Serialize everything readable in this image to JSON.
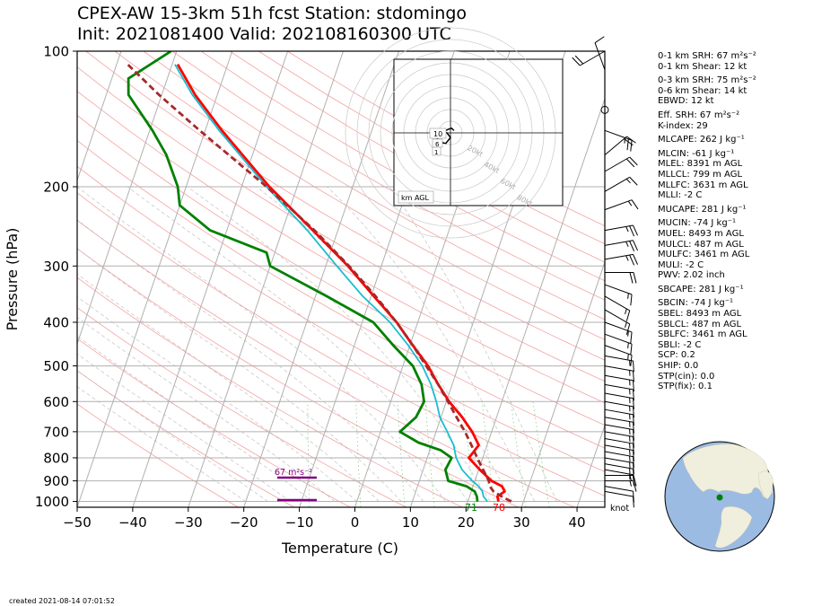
{
  "header": {
    "title_line1": "CPEX-AW 15-3km  51h fcst  Station: stdomingo",
    "title_line2": "Init: 2021081400  Valid: 202108160300 UTC"
  },
  "chart_data": {
    "type": "skew-t",
    "xlabel": "Temperature (C)",
    "ylabel": "Pressure (hPa)",
    "xlim": [
      -50,
      45
    ],
    "ylim": [
      1030,
      100
    ],
    "x_ticks": [
      -50,
      -40,
      -30,
      -20,
      -10,
      0,
      10,
      20,
      30,
      40
    ],
    "y_ticks": [
      100,
      200,
      300,
      400,
      500,
      600,
      700,
      800,
      900,
      1000
    ],
    "wind_units_label": "knot",
    "surface_dewpoint_label": "71",
    "surface_temperature_label": "78",
    "srh_bar_label": "67 m²s⁻²",
    "series": [
      {
        "role": "temperature",
        "color": "#ff0000",
        "points": [
          [
            1000,
            25.5
          ],
          [
            975,
            25.0
          ],
          [
            950,
            26.0
          ],
          [
            925,
            25.2
          ],
          [
            900,
            23.0
          ],
          [
            850,
            20.2
          ],
          [
            800,
            17.5
          ],
          [
            775,
            18.0
          ],
          [
            750,
            18.5
          ],
          [
            700,
            16.5
          ],
          [
            650,
            13.8
          ],
          [
            600,
            10.5
          ],
          [
            550,
            7.5
          ],
          [
            500,
            4.5
          ],
          [
            450,
            0.5
          ],
          [
            400,
            -3.8
          ],
          [
            350,
            -9.5
          ],
          [
            300,
            -16
          ],
          [
            250,
            -24.5
          ],
          [
            200,
            -35
          ],
          [
            150,
            -47
          ],
          [
            125,
            -54
          ],
          [
            107,
            -59
          ]
        ]
      },
      {
        "role": "wet-bulb",
        "color": "#17becf",
        "points": [
          [
            1000,
            23.5
          ],
          [
            975,
            22.5
          ],
          [
            950,
            22.0
          ],
          [
            925,
            21.0
          ],
          [
            900,
            19.5
          ],
          [
            850,
            17.0
          ],
          [
            800,
            15.2
          ],
          [
            750,
            14.0
          ],
          [
            700,
            12.0
          ],
          [
            650,
            9.8
          ],
          [
            600,
            8.2
          ],
          [
            550,
            6.2
          ],
          [
            500,
            3.5
          ],
          [
            450,
            -0.3
          ],
          [
            400,
            -5.0
          ],
          [
            350,
            -11.5
          ],
          [
            300,
            -18
          ],
          [
            250,
            -25.5
          ],
          [
            200,
            -35.5
          ],
          [
            150,
            -47.5
          ],
          [
            125,
            -54.5
          ],
          [
            107,
            -59.5
          ]
        ]
      },
      {
        "role": "dewpoint",
        "color": "#008000",
        "points": [
          [
            1000,
            21.7
          ],
          [
            975,
            21.3
          ],
          [
            950,
            20.6
          ],
          [
            925,
            18.8
          ],
          [
            900,
            15.2
          ],
          [
            850,
            14.0
          ],
          [
            800,
            14.4
          ],
          [
            770,
            12.0
          ],
          [
            740,
            7.5
          ],
          [
            700,
            3.5
          ],
          [
            650,
            5.5
          ],
          [
            600,
            6.0
          ],
          [
            550,
            4.5
          ],
          [
            500,
            1.8
          ],
          [
            450,
            -3.0
          ],
          [
            400,
            -8.0
          ],
          [
            350,
            -18
          ],
          [
            300,
            -30
          ],
          [
            280,
            -31.5
          ],
          [
            250,
            -43
          ],
          [
            220,
            -50
          ],
          [
            200,
            -51.5
          ],
          [
            170,
            -55.5
          ],
          [
            150,
            -59.5
          ],
          [
            125,
            -66
          ],
          [
            115,
            -67
          ],
          [
            100,
            -61
          ]
        ]
      },
      {
        "role": "parcel",
        "color": "#a52a2a",
        "points": [
          [
            1000,
            27.8
          ],
          [
            975,
            25.8
          ],
          [
            950,
            24.0
          ],
          [
            925,
            23.0
          ],
          [
            900,
            22.5
          ],
          [
            850,
            20.8
          ],
          [
            800,
            19.0
          ],
          [
            750,
            17.2
          ],
          [
            700,
            15.2
          ],
          [
            650,
            12.8
          ],
          [
            600,
            10.3
          ],
          [
            550,
            7.5
          ],
          [
            500,
            4.2
          ],
          [
            450,
            0.5
          ],
          [
            400,
            -3.8
          ],
          [
            350,
            -9.2
          ],
          [
            300,
            -15.8
          ],
          [
            250,
            -24.2
          ],
          [
            200,
            -35.5
          ],
          [
            150,
            -51
          ],
          [
            125,
            -60.5
          ],
          [
            107,
            -68
          ]
        ]
      }
    ],
    "wind_barbs": [
      {
        "p": 100,
        "speed": 20,
        "dir": 240
      },
      {
        "p": 110,
        "speed": 10,
        "dir": 340
      },
      {
        "p": 135,
        "speed": 0,
        "dir": 0
      },
      {
        "p": 150,
        "speed": 25,
        "dir": 110
      },
      {
        "p": 170,
        "speed": 20,
        "dir": 50
      },
      {
        "p": 185,
        "speed": 20,
        "dir": 60
      },
      {
        "p": 205,
        "speed": 15,
        "dir": 60
      },
      {
        "p": 225,
        "speed": 15,
        "dir": 70
      },
      {
        "p": 250,
        "speed": 25,
        "dir": 80
      },
      {
        "p": 270,
        "speed": 25,
        "dir": 80
      },
      {
        "p": 290,
        "speed": 25,
        "dir": 80
      },
      {
        "p": 310,
        "speed": 20,
        "dir": 90
      },
      {
        "p": 330,
        "speed": 15,
        "dir": 110
      },
      {
        "p": 350,
        "speed": 15,
        "dir": 120
      },
      {
        "p": 375,
        "speed": 15,
        "dir": 120
      },
      {
        "p": 400,
        "speed": 15,
        "dir": 110
      },
      {
        "p": 425,
        "speed": 15,
        "dir": 110
      },
      {
        "p": 450,
        "speed": 15,
        "dir": 110
      },
      {
        "p": 475,
        "speed": 15,
        "dir": 100
      },
      {
        "p": 500,
        "speed": 15,
        "dir": 100
      },
      {
        "p": 525,
        "speed": 15,
        "dir": 100
      },
      {
        "p": 550,
        "speed": 15,
        "dir": 100
      },
      {
        "p": 575,
        "speed": 15,
        "dir": 100
      },
      {
        "p": 600,
        "speed": 15,
        "dir": 100
      },
      {
        "p": 625,
        "speed": 15,
        "dir": 100
      },
      {
        "p": 650,
        "speed": 15,
        "dir": 100
      },
      {
        "p": 675,
        "speed": 15,
        "dir": 100
      },
      {
        "p": 700,
        "speed": 15,
        "dir": 100
      },
      {
        "p": 725,
        "speed": 15,
        "dir": 100
      },
      {
        "p": 750,
        "speed": 15,
        "dir": 100
      },
      {
        "p": 775,
        "speed": 15,
        "dir": 100
      },
      {
        "p": 800,
        "speed": 15,
        "dir": 100
      },
      {
        "p": 825,
        "speed": 15,
        "dir": 100
      },
      {
        "p": 850,
        "speed": 15,
        "dir": 100
      },
      {
        "p": 875,
        "speed": 15,
        "dir": 90
      },
      {
        "p": 900,
        "speed": 15,
        "dir": 90
      },
      {
        "p": 925,
        "speed": 10,
        "dir": 100
      },
      {
        "p": 950,
        "speed": 10,
        "dir": 100
      }
    ],
    "hodograph": {
      "ring_labels": [
        "20kt",
        "40kt",
        "60kt",
        "80kt"
      ],
      "height_labels": [
        "10",
        "6",
        "1"
      ],
      "units_label": "km AGL",
      "trace": [
        [
          -8,
          2
        ],
        [
          -12,
          -3
        ],
        [
          -10,
          -8
        ],
        [
          -4,
          -9
        ],
        [
          0,
          -4
        ],
        [
          -3,
          0
        ],
        [
          -6,
          1
        ],
        [
          -2,
          3
        ],
        [
          1,
          4
        ],
        [
          3,
          2
        ]
      ]
    },
    "inset_map": {
      "land_color": "#f0eedc",
      "ocean_color": "#9bbbe3",
      "station_color": "#008000"
    }
  },
  "indices": {
    "group1": [
      "0-1 km SRH: 67 m²s⁻²",
      "0-1 km Shear: 12 kt"
    ],
    "group2": [
      "0-3 km SRH: 75 m²s⁻²",
      "0-6 km Shear: 14 kt",
      "EBWD: 12 kt"
    ],
    "group3": [
      "Eff. SRH: 67 m²s⁻²",
      "K-index: 29"
    ],
    "group4": [
      "MLCAPE: 262 J kg⁻¹"
    ],
    "group5": [
      "MLCIN: -61 J kg⁻¹",
      "MLEL: 8391 m AGL",
      "MLLCL: 799 m AGL",
      "MLLFC: 3631 m AGL",
      "MLLI: -2 C"
    ],
    "group6": [
      "MUCAPE: 281 J kg⁻¹"
    ],
    "group7": [
      "MUCIN: -74 J kg⁻¹",
      "MUEL: 8493 m AGL",
      "MULCL: 487 m AGL",
      "MULFC: 3461 m AGL",
      "MULI: -2 C",
      "PWV: 2.02 inch"
    ],
    "group8": [
      "SBCAPE: 281 J kg⁻¹"
    ],
    "group9": [
      "SBCIN: -74 J kg⁻¹",
      "SBEL: 8493 m AGL",
      "SBLCL: 487 m AGL",
      "SBLFC: 3461 m AGL",
      "SBLI: -2 C",
      "SCP: 0.2",
      "SHIP: 0.0",
      "STP(cin): 0.0",
      "STP(fix): 0.1"
    ]
  },
  "footer": {
    "created": "created 2021-08-14 07:01:52"
  }
}
